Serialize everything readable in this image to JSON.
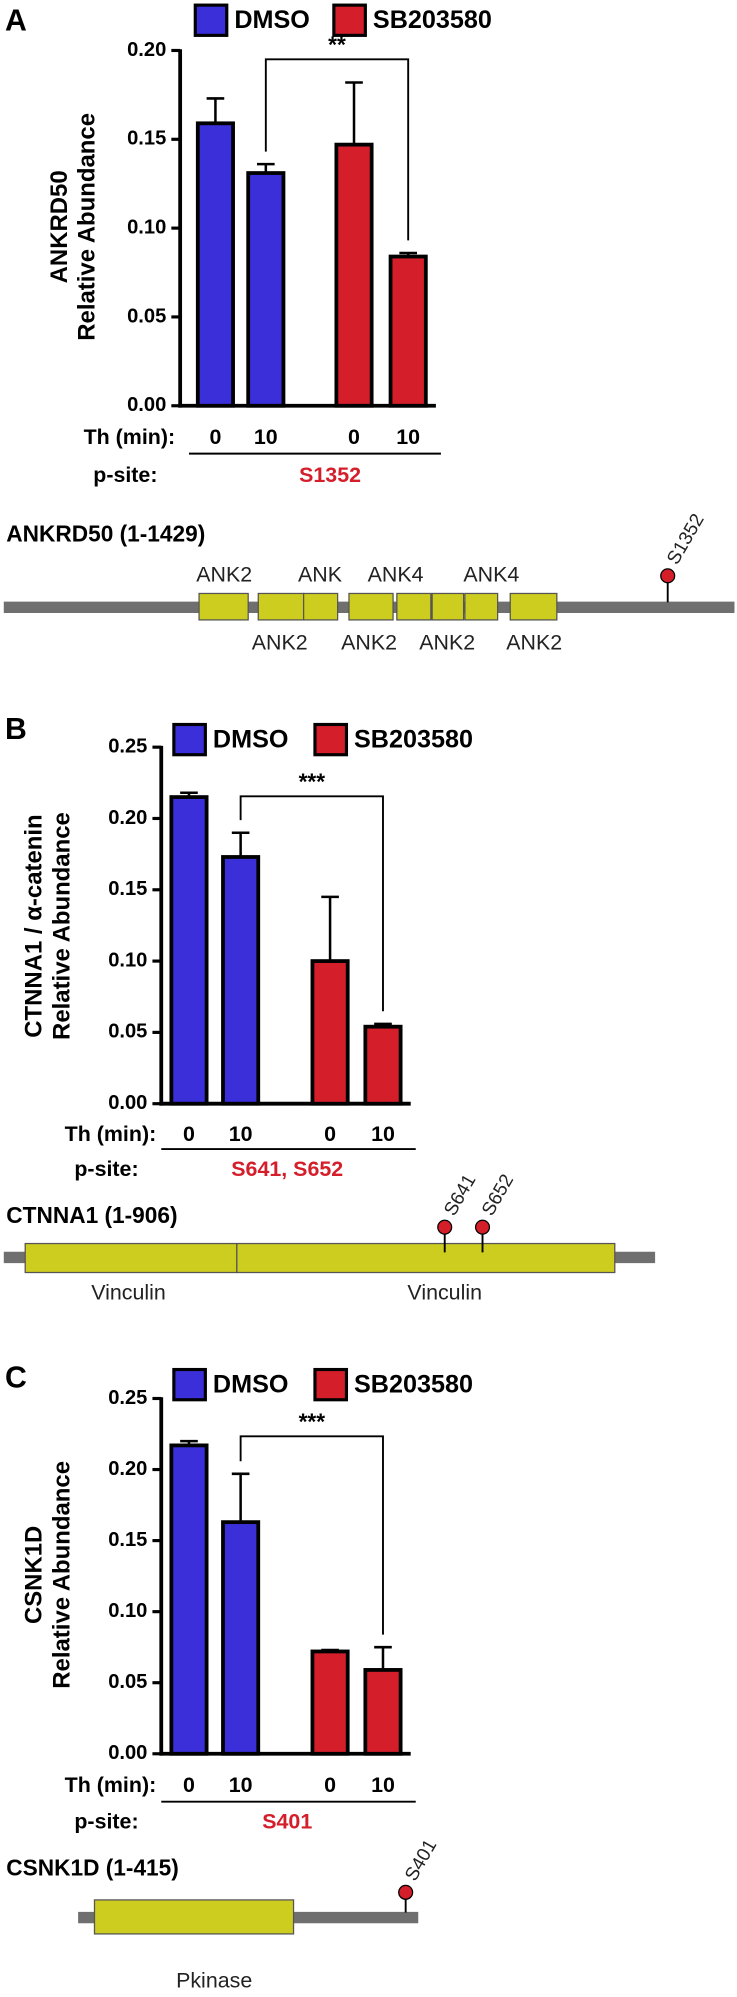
{
  "chart_data": [
    {
      "type": "bar",
      "panel": "A",
      "ylabel": [
        "ANKRD50",
        "Relative Abundance"
      ],
      "categories": [
        "0",
        "10"
      ],
      "series": [
        {
          "name": "DMSO",
          "color": "#3a2fd8",
          "values": [
            0.159,
            0.131
          ],
          "errors": [
            0.014,
            0.005
          ]
        },
        {
          "name": "SB203580",
          "color": "#d41f2b",
          "values": [
            0.147,
            0.084
          ],
          "errors": [
            0.035,
            0.002
          ]
        }
      ],
      "ylim": [
        0,
        0.2
      ],
      "yticks": [
        {
          "value": 0,
          "label": "0.00"
        },
        {
          "value": 0.05,
          "label": "0.05"
        },
        {
          "value": 0.1,
          "label": "0.10"
        },
        {
          "value": 0.15,
          "label": "0.15"
        },
        {
          "value": 0.2,
          "label": "0.20"
        }
      ],
      "xrow_label": "Th (min):",
      "psite_label": "p-site:",
      "psite": "S1352",
      "significance": "**"
    },
    {
      "type": "bar",
      "panel": "B",
      "ylabel": [
        "CTNNA1 / α-catenin",
        "Relative Abundance"
      ],
      "categories": [
        "0",
        "10"
      ],
      "series": [
        {
          "name": "DMSO",
          "color": "#3a2fd8",
          "values": [
            0.215,
            0.173
          ],
          "errors": [
            0.003,
            0.017
          ]
        },
        {
          "name": "SB203580",
          "color": "#d41f2b",
          "values": [
            0.1,
            0.054
          ],
          "errors": [
            0.045,
            0.002
          ]
        }
      ],
      "ylim": [
        0,
        0.25
      ],
      "yticks": [
        {
          "value": 0,
          "label": "0.00"
        },
        {
          "value": 0.05,
          "label": "0.05"
        },
        {
          "value": 0.1,
          "label": "0.10"
        },
        {
          "value": 0.15,
          "label": "0.15"
        },
        {
          "value": 0.2,
          "label": "0.20"
        },
        {
          "value": 0.25,
          "label": "0.25"
        }
      ],
      "xrow_label": "Th (min):",
      "psite_label": "p-site:",
      "psite": "S641, S652",
      "significance": "***"
    },
    {
      "type": "bar",
      "panel": "C",
      "ylabel": [
        "CSNK1D",
        "Relative Abundance"
      ],
      "categories": [
        "0",
        "10"
      ],
      "series": [
        {
          "name": "DMSO",
          "color": "#3a2fd8",
          "values": [
            0.217,
            0.163
          ],
          "errors": [
            0.003,
            0.034
          ]
        },
        {
          "name": "SB203580",
          "color": "#d41f2b",
          "values": [
            0.072,
            0.059
          ],
          "errors": [
            0.001,
            0.016
          ]
        }
      ],
      "ylim": [
        0,
        0.25
      ],
      "yticks": [
        {
          "value": 0,
          "label": "0.00"
        },
        {
          "value": 0.05,
          "label": "0.05"
        },
        {
          "value": 0.1,
          "label": "0.10"
        },
        {
          "value": 0.15,
          "label": "0.15"
        },
        {
          "value": 0.2,
          "label": "0.20"
        },
        {
          "value": 0.25,
          "label": "0.25"
        }
      ],
      "xrow_label": "Th (min):",
      "psite_label": "p-site:",
      "psite": "S401",
      "significance": "***"
    }
  ],
  "proteins": [
    {
      "title": "ANKRD50 (1-1429)",
      "domains": [
        "ANK2",
        "ANK2",
        "ANK",
        "ANK2",
        "ANK4",
        "ANK2",
        "ANK4",
        "ANK2"
      ],
      "sites": [
        "S1352"
      ]
    },
    {
      "title": "CTNNA1 (1-906)",
      "domains": [
        "Vinculin",
        "Vinculin"
      ],
      "sites": [
        "S641",
        "S652"
      ]
    },
    {
      "title": "CSNK1D (1-415)",
      "domains": [
        "Pkinase"
      ],
      "sites": [
        "S401"
      ]
    }
  ]
}
